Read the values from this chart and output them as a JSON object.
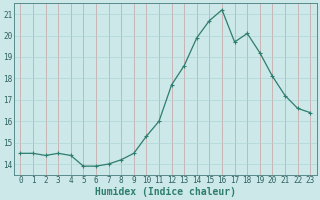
{
  "x": [
    0,
    1,
    2,
    3,
    4,
    5,
    6,
    7,
    8,
    9,
    10,
    11,
    12,
    13,
    14,
    15,
    16,
    17,
    18,
    19,
    20,
    21,
    22,
    23
  ],
  "y": [
    14.5,
    14.5,
    14.4,
    14.5,
    14.4,
    13.9,
    13.9,
    14.0,
    14.2,
    14.5,
    15.3,
    16.0,
    17.7,
    18.6,
    19.9,
    20.7,
    21.2,
    19.7,
    20.1,
    19.2,
    18.1,
    17.2,
    16.6,
    16.4
  ],
  "line_color": "#2e7d6e",
  "marker": "+",
  "marker_size": 3,
  "bg_color": "#cce8e8",
  "grid_color": "#b0d4d4",
  "xlabel": "Humidex (Indice chaleur)",
  "xlim": [
    -0.5,
    23.5
  ],
  "ylim": [
    13.5,
    21.5
  ],
  "yticks": [
    14,
    15,
    16,
    17,
    18,
    19,
    20,
    21
  ],
  "xticks": [
    0,
    1,
    2,
    3,
    4,
    5,
    6,
    7,
    8,
    9,
    10,
    11,
    12,
    13,
    14,
    15,
    16,
    17,
    18,
    19,
    20,
    21,
    22,
    23
  ],
  "tick_label_fontsize": 5.5,
  "xlabel_fontsize": 7.0,
  "line_width": 0.9
}
